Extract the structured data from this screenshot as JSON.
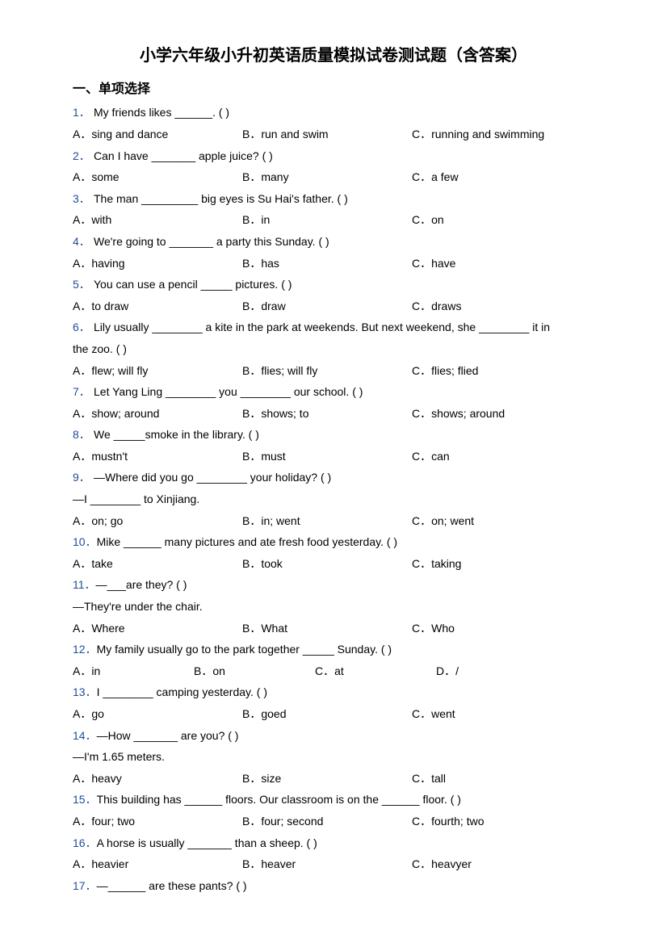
{
  "title": "小学六年级小升初英语质量模拟试卷测试题（含答案）",
  "section": "一、单项选择",
  "colors": {
    "qnum_color": "#1f4e99",
    "text_color": "#000000",
    "bg_color": "#ffffff"
  },
  "typography": {
    "title_fontsize": 20,
    "section_fontsize": 16,
    "body_fontsize": 14,
    "line_height": 1.9
  },
  "questions": [
    {
      "n": "1．",
      "q": "My friends likes ______. (    )",
      "opts": {
        "A": "A．sing and dance",
        "B": "B．run and swim",
        "C": "C．running and swimming"
      }
    },
    {
      "n": "2．",
      "q": "Can I have _______ apple juice? (    )",
      "opts": {
        "A": "A．some",
        "B": "B．many",
        "C": "C．a few"
      }
    },
    {
      "n": "3．",
      "q": "The man _________ big eyes is Su Hai's father. (    )",
      "opts": {
        "A": "A．with",
        "B": "B．in",
        "C": "C．on"
      }
    },
    {
      "n": "4．",
      "q": "We're going to _______ a party this Sunday. (     )",
      "opts": {
        "A": "A．having",
        "B": "B．has",
        "C": "C．have"
      }
    },
    {
      "n": "5．",
      "q": "You can use a pencil _____ pictures. (    )",
      "opts": {
        "A": "A．to draw",
        "B": "B．draw",
        "C": "C．draws"
      }
    },
    {
      "n": "6．",
      "q": "Lily usually ________ a kite in the park at weekends. But next weekend, she ________ it in",
      "cont": "the zoo. (    )",
      "opts": {
        "A": "A．flew; will fly",
        "B": "B．flies; will fly",
        "C": "C．flies; flied"
      }
    },
    {
      "n": "7．",
      "q": "Let Yang Ling ________ you ________ our school. (     )",
      "opts": {
        "A": "A．show; around",
        "B": "B．shows; to",
        "C": "C．shows; around"
      }
    },
    {
      "n": "8．",
      "q": "We _____smoke in the library. (    )",
      "opts": {
        "A": "A．mustn't",
        "B": "B．must",
        "C": "C．can"
      }
    },
    {
      "n": "9．",
      "q": "—Where did you go ________ your holiday? (     )",
      "cont": "—I ________ to Xinjiang.",
      "opts": {
        "A": "A．on; go",
        "B": "B．in; went",
        "C": "C．on; went"
      }
    },
    {
      "n": "10．",
      "q": "Mike ______ many pictures and ate fresh food yesterday. (    )",
      "opts": {
        "A": "A．take",
        "B": "B．took",
        "C": "C．taking"
      }
    },
    {
      "n": "11．",
      "q": "—___are they? (    )",
      "cont": "—They're under the chair.",
      "opts": {
        "A": "A．Where",
        "B": "B．What",
        "C": "C．Who"
      }
    },
    {
      "n": "12．",
      "q": "My family usually go to the park together _____ Sunday. (    )",
      "opts4": {
        "A": "A．in",
        "B": "B．on",
        "C": "C．at",
        "D": "D．/"
      }
    },
    {
      "n": "13．",
      "q": "I ________ camping yesterday. (     )",
      "opts": {
        "A": "A．go",
        "B": "B．goed",
        "C": "C．went"
      }
    },
    {
      "n": "14．",
      "q": "—How _______ are you? (    )",
      "cont": "—I'm 1.65 meters.",
      "opts": {
        "A": "A．heavy",
        "B": "B．size",
        "C": "C．tall"
      }
    },
    {
      "n": "15．",
      "q": "This building has ______ floors. Our classroom is on the ______ floor. (    )",
      "opts": {
        "A": "A．four; two",
        "B": "B．four; second",
        "C": "C．fourth; two"
      }
    },
    {
      "n": "16．",
      "q": "A horse is usually _______ than a sheep. (    )",
      "opts": {
        "A": "A．heavier",
        "B": "B．heaver",
        "C": "C．heavyer"
      }
    },
    {
      "n": "17．",
      "q": "—______ are these pants? (     )"
    }
  ]
}
